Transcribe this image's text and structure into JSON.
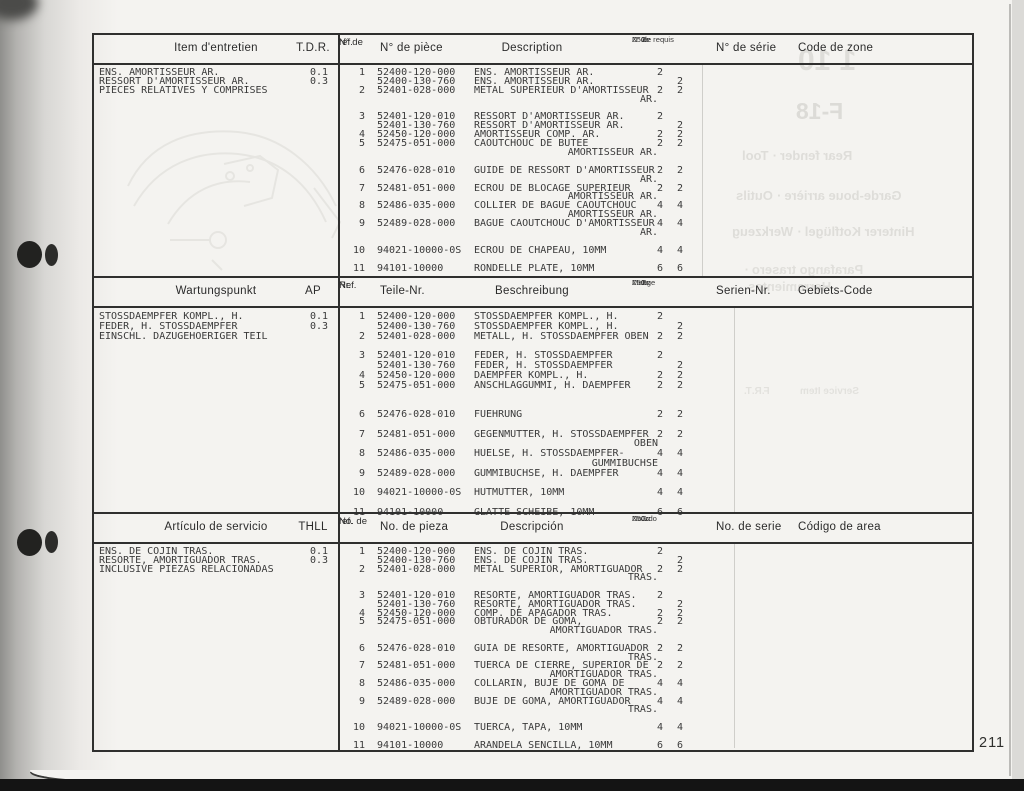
{
  "page_number": "211",
  "colors": {
    "page": "#f4f3f0",
    "rule": "#2f2f2e",
    "text": "#3a3a3a",
    "ghost": "#c9c8c3"
  },
  "line_format": [
    "type(r=row,c=continuation,b=blank)",
    "ref",
    "part",
    "desc",
    "jz",
    "gz"
  ],
  "sections": [
    {
      "lang": "french",
      "header": {
        "item": "Item d'entretien",
        "effort": "T.D.R.",
        "ref_l1": "N° de",
        "ref_l2": "réf.",
        "part": "N° de pièce",
        "desc": "Description",
        "qty_l1": "N° de requis",
        "qty_l2": "Z50",
        "qty_sub1": "Jz",
        "qty_sub2": "Gz",
        "serial": "N° de série",
        "zone": "Code de zone"
      },
      "left": [
        {
          "text": "ENS. AMORTISSEUR AR.",
          "val": "0.1"
        },
        {
          "text": "RESSORT D'AMORTISSEUR AR.",
          "val": "0.3"
        },
        {
          "text": "PIECES RELATIVES Y COMPRISES",
          "val": ""
        }
      ],
      "lines": [
        [
          "r",
          "1",
          "52400-120-000",
          "ENS. AMORTISSEUR AR.",
          "2",
          ""
        ],
        [
          "r",
          "",
          "52400-130-760",
          "ENS. AMORTISSEUR AR.",
          "",
          "2"
        ],
        [
          "r",
          "2",
          "52401-028-000",
          "METAL SUPERIEUR D'AMORTISSEUR",
          "2",
          "2"
        ],
        [
          "c",
          "AR."
        ],
        [
          "b"
        ],
        [
          "r",
          "3",
          "52401-120-010",
          "RESSORT D'AMORTISSEUR AR.",
          "2",
          ""
        ],
        [
          "r",
          "",
          "52401-130-760",
          "RESSORT D'AMORTISSEUR AR.",
          "",
          "2"
        ],
        [
          "r",
          "4",
          "52450-120-000",
          "AMORTISSEUR COMP. AR.",
          "2",
          "2"
        ],
        [
          "r",
          "5",
          "52475-051-000",
          "CAOUTCHOUC DE BUTEE",
          "2",
          "2"
        ],
        [
          "c",
          "AMORTISSEUR AR."
        ],
        [
          "b"
        ],
        [
          "r",
          "6",
          "52476-028-010",
          "GUIDE DE RESSORT D'AMORTISSEUR",
          "2",
          "2"
        ],
        [
          "c",
          "AR."
        ],
        [
          "r",
          "7",
          "52481-051-000",
          "ECROU DE BLOCAGE SUPERIEUR",
          "2",
          "2"
        ],
        [
          "c",
          "AMORTISSEUR AR."
        ],
        [
          "r",
          "8",
          "52486-035-000",
          "COLLIER DE BAGUE CAOUTCHOUC",
          "4",
          "4"
        ],
        [
          "c",
          "AMORTISSEUR AR."
        ],
        [
          "r",
          "9",
          "52489-028-000",
          "BAGUE CAOUTCHOUC D'AMORTISSEUR",
          "4",
          "4"
        ],
        [
          "c",
          "AR."
        ],
        [
          "b"
        ],
        [
          "r",
          "10",
          "94021-10000-0S",
          "ECROU DE CHAPEAU, 10MM",
          "4",
          "4"
        ],
        [
          "b"
        ],
        [
          "r",
          "11",
          "94101-10000",
          "RONDELLE PLATE, 10MM",
          "6",
          "6"
        ]
      ]
    },
    {
      "lang": "german",
      "header": {
        "item": "Wartungspunkt",
        "effort": "AP",
        "ref_l1": "Ref.",
        "ref_l2": "Nr.",
        "part": "Teile-Nr.",
        "desc": "Beschreibung",
        "qty_l1": "Menge",
        "qty_l2": "Z50",
        "qty_sub1": "Jz",
        "qty_sub2": "Gz",
        "serial": "Serien-Nr.",
        "zone": "Gebiets-Code"
      },
      "left": [
        {
          "text": "STOSSDAEMPFER KOMPL., H.",
          "val": "0.1"
        },
        {
          "text": "FEDER, H. STOSSDAEMPFER",
          "val": "0.3"
        },
        {
          "text": "EINSCHL. DAZUGEHOERIGER TEIL",
          "val": ""
        }
      ],
      "lines": [
        [
          "r",
          "1",
          "52400-120-000",
          "STOSSDAEMPFER KOMPL., H.",
          "2",
          ""
        ],
        [
          "r",
          "",
          "52400-130-760",
          "STOSSDAEMPFER KOMPL., H.",
          "",
          "2"
        ],
        [
          "r",
          "2",
          "52401-028-000",
          "METALL, H. STOSSDAEMPFER OBEN",
          "2",
          "2"
        ],
        [
          "b"
        ],
        [
          "r",
          "3",
          "52401-120-010",
          "FEDER, H. STOSSDAEMPFER",
          "2",
          ""
        ],
        [
          "r",
          "",
          "52401-130-760",
          "FEDER, H. STOSSDAEMPFER",
          "",
          "2"
        ],
        [
          "r",
          "4",
          "52450-120-000",
          "DAEMPFER KOMPL., H.",
          "2",
          "2"
        ],
        [
          "r",
          "5",
          "52475-051-000",
          "ANSCHLAGGUMMI, H. DAEMPFER",
          "2",
          "2"
        ],
        [
          "b"
        ],
        [
          "b"
        ],
        [
          "r",
          "6",
          "52476-028-010",
          "FUEHRUNG",
          "2",
          "2"
        ],
        [
          "b"
        ],
        [
          "r",
          "7",
          "52481-051-000",
          "GEGENMUTTER, H. STOSSDAEMPFER",
          "2",
          "2"
        ],
        [
          "c",
          "OBEN"
        ],
        [
          "r",
          "8",
          "52486-035-000",
          "HUELSE, H. STOSSDAEMPFER-",
          "4",
          "4"
        ],
        [
          "c",
          "GUMMIBUCHSE"
        ],
        [
          "r",
          "9",
          "52489-028-000",
          "GUMMIBUCHSE, H. DAEMPFER",
          "4",
          "4"
        ],
        [
          "b"
        ],
        [
          "r",
          "10",
          "94021-10000-0S",
          "HUTMUTTER, 10MM",
          "4",
          "4"
        ],
        [
          "b"
        ],
        [
          "r",
          "11",
          "94101-10000",
          "GLATTE SCHEIBE, 10MM",
          "6",
          "6"
        ]
      ]
    },
    {
      "lang": "spanish",
      "header": {
        "item": "Artículo de servicio",
        "effort": "THLL",
        "ref_l1": "No. de",
        "ref_l2": "ref.",
        "part": "No. de pieza",
        "desc": "Descripción",
        "qty_l1": "No. rdo",
        "qty_l2": "Z50",
        "qty_sub1": "Jz",
        "qty_sub2": "Gz",
        "serial": "No. de serie",
        "zone": "Código de area"
      },
      "left": [
        {
          "text": "ENS. DE COJIN TRAS.",
          "val": "0.1"
        },
        {
          "text": "RESORTE, AMORTIGUADOR TRAS.",
          "val": "0.3"
        },
        {
          "text": "INCLUSIVE PIEZAS RELACIONADAS",
          "val": ""
        }
      ],
      "lines": [
        [
          "r",
          "1",
          "52400-120-000",
          "ENS. DE COJIN TRAS.",
          "2",
          ""
        ],
        [
          "r",
          "",
          "52400-130-760",
          "ENS. DE COJIN TRAS.",
          "",
          "2"
        ],
        [
          "r",
          "2",
          "52401-028-000",
          "METAL SUPERIOR, AMORTIGUADOR",
          "2",
          "2"
        ],
        [
          "c",
          "TRAS."
        ],
        [
          "b"
        ],
        [
          "r",
          "3",
          "52401-120-010",
          "RESORTE, AMORTIGUADOR TRAS.",
          "2",
          ""
        ],
        [
          "r",
          "",
          "52401-130-760",
          "RESORTE, AMORTIGUADOR TRAS.",
          "",
          "2"
        ],
        [
          "r",
          "4",
          "52450-120-000",
          "COMP. DE APAGADOR TRAS.",
          "2",
          "2"
        ],
        [
          "r",
          "5",
          "52475-051-000",
          "OBTURADOR DE GOMA,",
          "2",
          "2"
        ],
        [
          "c",
          "AMORTIGUADOR TRAS."
        ],
        [
          "b"
        ],
        [
          "r",
          "6",
          "52476-028-010",
          "GUIA DE RESORTE, AMORTIGUADOR",
          "2",
          "2"
        ],
        [
          "c",
          "TRAS."
        ],
        [
          "r",
          "7",
          "52481-051-000",
          "TUERCA DE CIERRE, SUPERIOR DE",
          "2",
          "2"
        ],
        [
          "c",
          "AMORTIGUADOR TRAS."
        ],
        [
          "r",
          "8",
          "52486-035-000",
          "COLLARIN, BUJE DE GOMA DE",
          "4",
          "4"
        ],
        [
          "c",
          "AMORTIGUADOR TRAS."
        ],
        [
          "r",
          "9",
          "52489-028-000",
          "BUJE DE GOMA, AMORTIGUADOR",
          "4",
          "4"
        ],
        [
          "c",
          "TRAS."
        ],
        [
          "b"
        ],
        [
          "r",
          "10",
          "94021-10000-0S",
          "TUERCA, TAPA, 10MM",
          "4",
          "4"
        ],
        [
          "b"
        ],
        [
          "r",
          "11",
          "94101-10000",
          "ARANDELA SENCILLA, 10MM",
          "6",
          "6"
        ]
      ]
    }
  ],
  "bleed_through": {
    "items": [
      "1 10",
      "F-18",
      "Rear fender · Tool",
      "Garde-boue arrière · Outils",
      "Hinterer Kotflügel · Werkzeug",
      "Parafango trasero ·",
      "Herramientas",
      "Service Item",
      "F.R.T."
    ]
  }
}
